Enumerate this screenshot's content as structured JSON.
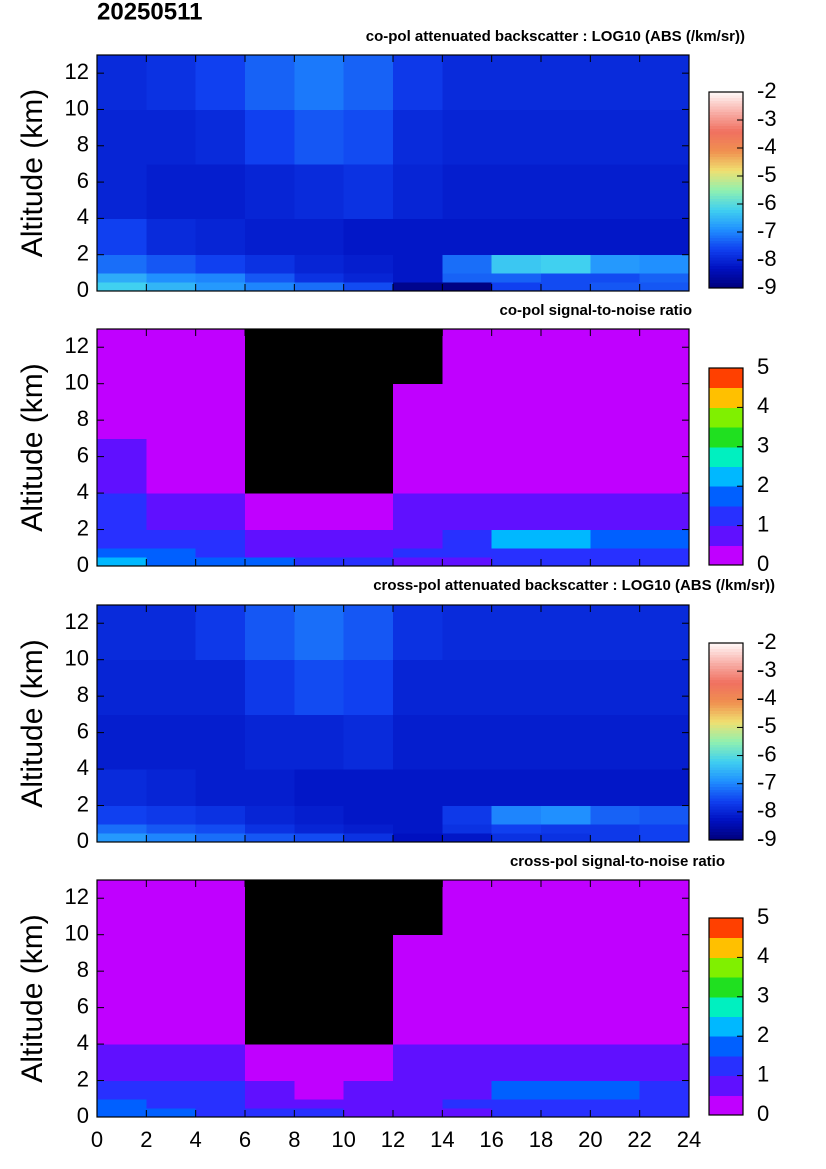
{
  "title": "20250511",
  "chart_data": [
    {
      "type": "heatmap",
      "title": "co-pol attenuated backscatter : LOG10 (ABS (/km/sr))",
      "y_label": "Altitude (km)",
      "xlim": [
        0,
        24
      ],
      "xticks": [
        0,
        2,
        4,
        6,
        8,
        10,
        12,
        14,
        16,
        18,
        20,
        22,
        24
      ],
      "ylim": [
        0,
        13
      ],
      "yticks": [
        0,
        2,
        4,
        6,
        8,
        10,
        12
      ],
      "x_bins": [
        0,
        2,
        4,
        6,
        8,
        10,
        12,
        14,
        16,
        18,
        20,
        22,
        24
      ],
      "y_bins": [
        0,
        0.5,
        1,
        2,
        4,
        7,
        10,
        13
      ],
      "values": [
        [
          -6.2,
          -6.5,
          -6.8,
          -7.0,
          -7.2,
          -7.5,
          -8.8,
          -8.9,
          -7.6,
          -7.5,
          -7.4,
          -7.4
        ],
        [
          -6.6,
          -6.9,
          -7.0,
          -7.4,
          -7.8,
          -8.0,
          -8.2,
          -7.3,
          -7.3,
          -7.5,
          -7.5,
          -7.3
        ],
        [
          -7.2,
          -7.4,
          -7.6,
          -7.8,
          -8.0,
          -8.1,
          -8.2,
          -7.2,
          -6.3,
          -6.2,
          -6.8,
          -6.9
        ],
        [
          -7.6,
          -7.9,
          -8.0,
          -8.1,
          -8.1,
          -8.2,
          -8.2,
          -8.2,
          -8.2,
          -8.2,
          -8.2,
          -8.2
        ],
        [
          -8.0,
          -8.1,
          -8.1,
          -8.0,
          -7.9,
          -7.8,
          -8.0,
          -8.1,
          -8.1,
          -8.1,
          -8.1,
          -8.1
        ],
        [
          -8.0,
          -8.0,
          -7.9,
          -7.6,
          -7.4,
          -7.5,
          -7.9,
          -8.0,
          -8.0,
          -8.0,
          -8.0,
          -8.0
        ],
        [
          -7.9,
          -7.8,
          -7.6,
          -7.3,
          -7.1,
          -7.3,
          -7.7,
          -7.9,
          -7.9,
          -7.9,
          -7.9,
          -7.9
        ]
      ],
      "colorbar_style": "gradient",
      "clim": [
        -9,
        -2
      ],
      "cticks": [
        -9,
        -8,
        -7,
        -6,
        -5,
        -4,
        -3,
        -2
      ],
      "colors": [
        "#00007a",
        "#0010c0",
        "#1040f0",
        "#2090ff",
        "#40d0f0",
        "#90f0b0",
        "#f0e070",
        "#f09050",
        "#f07060",
        "#f8b0a8",
        "#fff8f8"
      ],
      "under_color": "#000000"
    },
    {
      "type": "heatmap",
      "title": "co-pol signal-to-noise ratio",
      "y_label": "Altitude (km)",
      "xlim": [
        0,
        24
      ],
      "xticks": [
        0,
        2,
        4,
        6,
        8,
        10,
        12,
        14,
        16,
        18,
        20,
        22,
        24
      ],
      "ylim": [
        0,
        13
      ],
      "yticks": [
        0,
        2,
        4,
        6,
        8,
        10,
        12
      ],
      "x_bins": [
        0,
        2,
        4,
        6,
        8,
        10,
        12,
        14,
        16,
        18,
        20,
        22,
        24
      ],
      "y_bins": [
        0,
        0.5,
        1,
        2,
        4,
        7,
        10,
        13
      ],
      "values": [
        [
          2.2,
          1.8,
          1.6,
          1.5,
          1.3,
          1.2,
          0.8,
          0.9,
          1.2,
          1.1,
          1.1,
          1.2
        ],
        [
          1.8,
          1.6,
          1.3,
          0.8,
          0.6,
          0.9,
          1.0,
          1.2,
          1.4,
          1.3,
          1.2,
          1.2
        ],
        [
          1.4,
          1.3,
          1.2,
          0.9,
          0.6,
          0.7,
          0.9,
          1.0,
          2.0,
          2.1,
          1.8,
          1.7
        ],
        [
          1.0,
          0.9,
          0.9,
          0.4,
          0.1,
          0.2,
          0.6,
          0.8,
          0.9,
          0.9,
          0.9,
          0.9
        ],
        [
          0.5,
          0.4,
          0.4,
          -0.2,
          -0.5,
          -0.4,
          0.3,
          0.4,
          0.4,
          0.4,
          0.4,
          0.4
        ],
        [
          0.3,
          0.3,
          0.2,
          -0.5,
          -0.8,
          -0.7,
          0.1,
          0.3,
          0.3,
          0.3,
          0.3,
          0.3
        ],
        [
          0.1,
          0.1,
          0.0,
          -0.6,
          -0.9,
          -0.8,
          -0.1,
          0.1,
          0.1,
          0.1,
          0.1,
          0.1
        ]
      ],
      "colorbar_style": "steps",
      "clim": [
        0,
        5
      ],
      "cticks": [
        0,
        1,
        2,
        3,
        4,
        5
      ],
      "colors": [
        "#c000ff",
        "#6010ff",
        "#2830ff",
        "#0060ff",
        "#00b8ff",
        "#00f0c0",
        "#20e020",
        "#80f000",
        "#ffc000",
        "#ff4000"
      ],
      "under_color": "#000000"
    },
    {
      "type": "heatmap",
      "title": "cross-pol attenuated backscatter : LOG10 (ABS (/km/sr))",
      "y_label": "Altitude (km)",
      "xlim": [
        0,
        24
      ],
      "xticks": [
        0,
        2,
        4,
        6,
        8,
        10,
        12,
        14,
        16,
        18,
        20,
        22,
        24
      ],
      "ylim": [
        0,
        13
      ],
      "yticks": [
        0,
        2,
        4,
        6,
        8,
        10,
        12
      ],
      "x_bins": [
        0,
        2,
        4,
        6,
        8,
        10,
        12,
        14,
        16,
        18,
        20,
        22,
        24
      ],
      "y_bins": [
        0,
        0.5,
        1,
        2,
        4,
        7,
        10,
        13
      ],
      "values": [
        [
          -6.8,
          -7.0,
          -7.2,
          -7.4,
          -7.5,
          -7.8,
          -8.3,
          -8.2,
          -7.8,
          -7.8,
          -7.7,
          -7.6
        ],
        [
          -7.2,
          -7.4,
          -7.5,
          -7.8,
          -8.0,
          -8.1,
          -8.2,
          -7.8,
          -7.6,
          -7.7,
          -7.7,
          -7.6
        ],
        [
          -7.6,
          -7.7,
          -7.8,
          -8.0,
          -8.1,
          -8.2,
          -8.2,
          -7.7,
          -7.0,
          -6.9,
          -7.3,
          -7.4
        ],
        [
          -7.9,
          -8.0,
          -8.1,
          -8.1,
          -8.2,
          -8.2,
          -8.2,
          -8.2,
          -8.2,
          -8.2,
          -8.2,
          -8.2
        ],
        [
          -8.1,
          -8.1,
          -8.1,
          -8.0,
          -8.0,
          -7.9,
          -8.1,
          -8.1,
          -8.1,
          -8.1,
          -8.1,
          -8.1
        ],
        [
          -8.0,
          -8.0,
          -8.0,
          -7.7,
          -7.5,
          -7.6,
          -8.0,
          -8.0,
          -8.0,
          -8.0,
          -8.0,
          -8.0
        ],
        [
          -7.9,
          -7.9,
          -7.7,
          -7.4,
          -7.2,
          -7.4,
          -7.8,
          -7.9,
          -7.9,
          -7.9,
          -7.9,
          -7.9
        ]
      ],
      "colorbar_style": "gradient",
      "clim": [
        -9,
        -2
      ],
      "cticks": [
        -9,
        -8,
        -7,
        -6,
        -5,
        -4,
        -3,
        -2
      ],
      "colors": [
        "#00007a",
        "#0010c0",
        "#1040f0",
        "#2090ff",
        "#40d0f0",
        "#90f0b0",
        "#f0e070",
        "#f09050",
        "#f07060",
        "#f8b0a8",
        "#fff8f8"
      ],
      "under_color": "#000000"
    },
    {
      "type": "heatmap",
      "title": "cross-pol signal-to-noise ratio",
      "y_label": "Altitude (km)",
      "xlim": [
        0,
        24
      ],
      "xticks": [
        0,
        2,
        4,
        6,
        8,
        10,
        12,
        14,
        16,
        18,
        20,
        22,
        24
      ],
      "ylim": [
        0,
        13
      ],
      "yticks": [
        0,
        2,
        4,
        6,
        8,
        10,
        12
      ],
      "x_bins": [
        0,
        2,
        4,
        6,
        8,
        10,
        12,
        14,
        16,
        18,
        20,
        22,
        24
      ],
      "y_bins": [
        0,
        0.5,
        1,
        2,
        4,
        7,
        10,
        13
      ],
      "values": [
        [
          1.9,
          1.6,
          1.4,
          1.3,
          1.1,
          0.9,
          0.6,
          0.7,
          1.0,
          1.0,
          1.0,
          1.1
        ],
        [
          1.5,
          1.3,
          1.1,
          0.7,
          0.5,
          0.6,
          0.8,
          1.0,
          1.2,
          1.1,
          1.1,
          1.1
        ],
        [
          1.2,
          1.1,
          1.0,
          0.7,
          0.4,
          0.5,
          0.8,
          0.9,
          1.6,
          1.7,
          1.5,
          1.4
        ],
        [
          0.9,
          0.8,
          0.8,
          0.3,
          0.0,
          0.1,
          0.5,
          0.8,
          0.8,
          0.8,
          0.8,
          0.8
        ],
        [
          0.4,
          0.4,
          0.3,
          -0.3,
          -0.6,
          -0.5,
          0.2,
          0.4,
          0.4,
          0.4,
          0.4,
          0.4
        ],
        [
          0.3,
          0.2,
          0.2,
          -0.5,
          -0.8,
          -0.7,
          0.1,
          0.2,
          0.3,
          0.3,
          0.3,
          0.3
        ],
        [
          0.1,
          0.1,
          0.0,
          -0.6,
          -0.9,
          -0.8,
          -0.1,
          0.1,
          0.1,
          0.1,
          0.1,
          0.1
        ]
      ],
      "colorbar_style": "steps",
      "clim": [
        0,
        5
      ],
      "cticks": [
        0,
        1,
        2,
        3,
        4,
        5
      ],
      "colors": [
        "#c000ff",
        "#6010ff",
        "#2830ff",
        "#0060ff",
        "#00b8ff",
        "#00f0c0",
        "#20e020",
        "#80f000",
        "#ffc000",
        "#ff4000"
      ],
      "under_color": "#000000"
    }
  ]
}
